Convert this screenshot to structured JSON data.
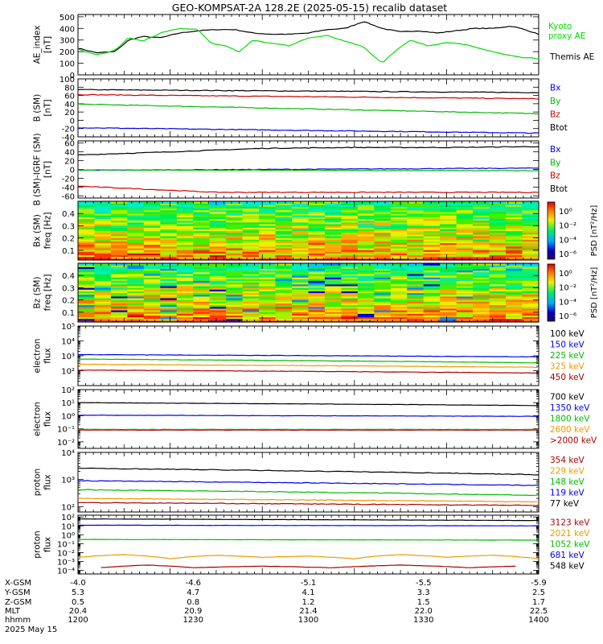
{
  "title": "GEO-KOMPSAT-2A 128.2E (2025-05-15) recalib dataset",
  "chart_data": [
    {
      "type": "line",
      "ylabel": "AE_index\n[nT]",
      "yticks": [
        0,
        100,
        200,
        300,
        400,
        500
      ],
      "ylim": [
        0,
        520
      ],
      "legend": [
        {
          "name": "Kyoto proxy AE",
          "lines": [
            "Kyoto",
            "proxy AE"
          ],
          "color": "#00dd00"
        },
        {
          "name": "Themis AE",
          "lines": [
            "Themis AE"
          ],
          "color": "#000000"
        }
      ],
      "series": [
        {
          "name": "Themis AE",
          "color": "#000000",
          "x": [
            0,
            0.04,
            0.08,
            0.11,
            0.14,
            0.18,
            0.22,
            0.26,
            0.3,
            0.34,
            0.38,
            0.42,
            0.46,
            0.5,
            0.54,
            0.58,
            0.62,
            0.66,
            0.7,
            0.74,
            0.78,
            0.82,
            0.86,
            0.9,
            0.94,
            0.97,
            1.0
          ],
          "y": [
            230,
            190,
            200,
            300,
            330,
            320,
            360,
            380,
            390,
            390,
            360,
            350,
            350,
            360,
            390,
            400,
            460,
            400,
            370,
            380,
            360,
            380,
            400,
            400,
            420,
            390,
            350
          ]
        },
        {
          "name": "Kyoto proxy AE",
          "color": "#00dd00",
          "x": [
            0,
            0.04,
            0.08,
            0.11,
            0.14,
            0.18,
            0.22,
            0.26,
            0.29,
            0.32,
            0.35,
            0.38,
            0.42,
            0.46,
            0.5,
            0.54,
            0.58,
            0.62,
            0.66,
            0.69,
            0.72,
            0.76,
            0.8,
            0.84,
            0.88,
            0.92,
            0.96,
            1.0
          ],
          "y": [
            220,
            170,
            210,
            320,
            290,
            360,
            400,
            390,
            270,
            250,
            200,
            300,
            270,
            250,
            320,
            340,
            290,
            240,
            100,
            210,
            300,
            250,
            280,
            260,
            220,
            180,
            150,
            140
          ]
        }
      ]
    },
    {
      "type": "line",
      "ylabel": "B (SM)\n[nT]",
      "yticks": [
        -40,
        -20,
        0,
        20,
        40,
        60,
        80,
        100
      ],
      "ylim": [
        -40,
        100
      ],
      "legend": [
        {
          "name": "Bx",
          "lines": [
            "Bx"
          ],
          "color": "#0000ee"
        },
        {
          "name": "By",
          "lines": [
            "By"
          ],
          "color": "#00bb00"
        },
        {
          "name": "Bz",
          "lines": [
            "Bz"
          ],
          "color": "#cc0000"
        },
        {
          "name": "Btot",
          "lines": [
            "Btot"
          ],
          "color": "#000000"
        }
      ],
      "series": [
        {
          "name": "Btot",
          "color": "#000000",
          "x": [
            0,
            1
          ],
          "y": [
            74,
            67
          ]
        },
        {
          "name": "Bz",
          "color": "#cc0000",
          "x": [
            0,
            1
          ],
          "y": [
            62,
            52
          ]
        },
        {
          "name": "By",
          "color": "#00bb00",
          "x": [
            0,
            1
          ],
          "y": [
            39,
            16
          ]
        },
        {
          "name": "Bx",
          "color": "#0000ee",
          "x": [
            0,
            1
          ],
          "y": [
            -18,
            -31
          ]
        }
      ]
    },
    {
      "type": "line",
      "ylabel": "B (SM)-IGRF (SM)\n[nT]",
      "yticks": [
        -60,
        -40,
        -20,
        0,
        20,
        40,
        60
      ],
      "ylim": [
        -65,
        65
      ],
      "legend": [
        {
          "name": "Bx",
          "lines": [
            "Bx"
          ],
          "color": "#0000ee"
        },
        {
          "name": "By",
          "lines": [
            "By"
          ],
          "color": "#00bb00"
        },
        {
          "name": "Bz",
          "lines": [
            "Bz"
          ],
          "color": "#cc0000"
        },
        {
          "name": "Btot",
          "lines": [
            "Btot"
          ],
          "color": "#000000"
        }
      ],
      "series": [
        {
          "name": "Btot",
          "color": "#000000",
          "x": [
            0,
            0.2,
            0.4,
            0.6,
            0.8,
            1.0
          ],
          "y": [
            33,
            40,
            48,
            50,
            50,
            52
          ]
        },
        {
          "name": "Bx",
          "color": "#0000ee",
          "x": [
            0,
            1
          ],
          "y": [
            -2,
            3
          ]
        },
        {
          "name": "By",
          "color": "#00bb00",
          "x": [
            0,
            1
          ],
          "y": [
            -1,
            -3
          ]
        },
        {
          "name": "Bz",
          "color": "#cc0000",
          "x": [
            0,
            0.3,
            1
          ],
          "y": [
            -38,
            -52,
            -52
          ]
        }
      ]
    },
    {
      "type": "heatmap",
      "ylabel": "Bx (SM)\nfreq [Hz]",
      "yticks": [
        0.1,
        0.2,
        0.3,
        0.4
      ],
      "ylim": [
        0.02,
        0.5
      ],
      "cbar": {
        "label": "PSD [nT²/Hz]",
        "ticks": [
          "10⁰",
          "10⁻²",
          "10⁻⁴",
          "10⁻⁶"
        ]
      }
    },
    {
      "type": "heatmap",
      "ylabel": "Bz (SM)\nfreq [Hz]",
      "yticks": [
        0.1,
        0.2,
        0.3,
        0.4
      ],
      "ylim": [
        0.02,
        0.5
      ],
      "cbar": {
        "label": "PSD [nT²/Hz]",
        "ticks": [
          "10⁰",
          "10⁻²",
          "10⁻⁴",
          "10⁻⁶"
        ]
      }
    },
    {
      "type": "line",
      "ylabel": "electron\nflux",
      "log": true,
      "ylim_exp": [
        1,
        5
      ],
      "yticks_exp": [
        2,
        3,
        4,
        5
      ],
      "legend": [
        {
          "name": "100 keV",
          "lines": [
            "100 keV"
          ],
          "color": "#000000"
        },
        {
          "name": "150 keV",
          "lines": [
            "150 keV"
          ],
          "color": "#0000ee"
        },
        {
          "name": "225 keV",
          "lines": [
            "225 keV"
          ],
          "color": "#00bb00"
        },
        {
          "name": "325 keV",
          "lines": [
            "325 keV"
          ],
          "color": "#ee9900"
        },
        {
          "name": "450 keV",
          "lines": [
            "450 keV"
          ],
          "color": "#aa0000"
        }
      ],
      "series": [
        {
          "name": "150 keV",
          "color": "#0000ee",
          "x": [
            0,
            1
          ],
          "y": [
            1200,
            850
          ]
        },
        {
          "name": "225 keV",
          "color": "#00bb00",
          "x": [
            0,
            1
          ],
          "y": [
            600,
            340
          ]
        },
        {
          "name": "325 keV",
          "color": "#ee9900",
          "x": [
            0,
            1
          ],
          "y": [
            270,
            170
          ]
        },
        {
          "name": "450 keV",
          "color": "#aa0000",
          "x": [
            0,
            1
          ],
          "y": [
            110,
            70
          ]
        }
      ]
    },
    {
      "type": "line",
      "ylabel": "electron\nflux",
      "log": true,
      "ylim_exp": [
        -2.5,
        2
      ],
      "yticks_exp": [
        -2,
        -1,
        0,
        1,
        2
      ],
      "legend": [
        {
          "name": "700 keV",
          "lines": [
            "700 keV"
          ],
          "color": "#000000"
        },
        {
          "name": "1350 keV",
          "lines": [
            "1350 keV"
          ],
          "color": "#0000ee"
        },
        {
          "name": "1800 keV",
          "lines": [
            "1800 keV"
          ],
          "color": "#00bb00"
        },
        {
          "name": "2600 keV",
          "lines": [
            "2600 keV"
          ],
          "color": "#ee9900"
        },
        {
          "name": ">2000 keV",
          "lines": [
            ">2000 keV"
          ],
          "color": "#aa0000"
        }
      ],
      "series": [
        {
          "name": "700 keV",
          "color": "#000000",
          "x": [
            0,
            1
          ],
          "y": [
            10,
            6
          ]
        },
        {
          "name": "1350 keV",
          "color": "#0000ee",
          "x": [
            0,
            1
          ],
          "y": [
            1.1,
            0.9
          ]
        },
        {
          "name": "1800 keV",
          "color": "#00bb00",
          "x": [
            0,
            1
          ],
          "y": [
            0.09,
            0.09
          ]
        },
        {
          "name": "2600 keV",
          "color": "#ee9900",
          "x": [
            0,
            1
          ],
          "y": [
            0.085,
            0.085
          ]
        },
        {
          "name": ">2000 keV",
          "color": "#aa0000",
          "x": [
            0,
            1
          ],
          "y": [
            0.08,
            0.08
          ]
        }
      ]
    },
    {
      "type": "line",
      "ylabel": "proton\nflux",
      "log": true,
      "ylim_exp": [
        1.8,
        4
      ],
      "yticks_exp": [
        2,
        3,
        4
      ],
      "legend": [
        {
          "name": "354 keV",
          "lines": [
            "354 keV"
          ],
          "color": "#aa0000"
        },
        {
          "name": "229 keV",
          "lines": [
            "229 keV"
          ],
          "color": "#ee9900"
        },
        {
          "name": "148 keV",
          "lines": [
            "148 keV"
          ],
          "color": "#00bb00"
        },
        {
          "name": "119 keV",
          "lines": [
            "119 keV"
          ],
          "color": "#0000ee"
        },
        {
          "name": "77 keV",
          "lines": [
            "77 keV"
          ],
          "color": "#000000"
        }
      ],
      "series": [
        {
          "name": "77 keV",
          "color": "#000000",
          "x": [
            0,
            1
          ],
          "y": [
            2600,
            1500
          ]
        },
        {
          "name": "119 keV",
          "color": "#0000ee",
          "x": [
            0,
            1
          ],
          "y": [
            900,
            600
          ]
        },
        {
          "name": "148 keV",
          "color": "#00bb00",
          "x": [
            0,
            1
          ],
          "y": [
            420,
            260
          ]
        },
        {
          "name": "229 keV",
          "color": "#ee9900",
          "x": [
            0,
            1
          ],
          "y": [
            200,
            150
          ]
        },
        {
          "name": "354 keV",
          "color": "#aa0000",
          "x": [
            0,
            1
          ],
          "y": [
            140,
            110
          ]
        }
      ]
    },
    {
      "type": "line",
      "ylabel": "proton\nflux",
      "log": true,
      "ylim_exp": [
        -4.4,
        2.2
      ],
      "yticks_exp": [
        -4,
        -3,
        -2,
        -1,
        0,
        1,
        2
      ],
      "legend": [
        {
          "name": "3123 keV",
          "lines": [
            "3123 keV"
          ],
          "color": "#aa0000"
        },
        {
          "name": "2021 keV",
          "lines": [
            "2021 keV"
          ],
          "color": "#ee9900"
        },
        {
          "name": "1052 keV",
          "lines": [
            "1052 keV"
          ],
          "color": "#00bb00"
        },
        {
          "name": "681 keV",
          "lines": [
            "681 keV"
          ],
          "color": "#0000ee"
        },
        {
          "name": "548 keV",
          "lines": [
            "548 keV"
          ],
          "color": "#000000"
        }
      ],
      "series": [
        {
          "name": "548 keV",
          "color": "#000000",
          "x": [
            0,
            1
          ],
          "y": [
            60,
            40
          ]
        },
        {
          "name": "681 keV",
          "color": "#0000ee",
          "x": [
            0,
            1
          ],
          "y": [
            12,
            10
          ]
        },
        {
          "name": "1052 keV",
          "color": "#00bb00",
          "x": [
            0,
            1
          ],
          "y": [
            0.3,
            0.25
          ]
        },
        {
          "name": "2021 keV",
          "color": "#ee9900",
          "x": [
            0,
            0.1,
            0.2,
            0.3,
            0.4,
            0.5,
            0.6,
            0.7,
            0.8,
            0.9,
            1.0
          ],
          "y": [
            0.003,
            0.006,
            0.002,
            0.005,
            0.003,
            0.004,
            0.002,
            0.006,
            0.003,
            0.005,
            0.002
          ]
        },
        {
          "name": "3123 keV",
          "color": "#aa0000",
          "x": [
            0.05,
            0.15,
            0.25,
            0.4,
            0.55,
            0.7,
            0.85,
            0.95
          ],
          "y": [
            0.0002,
            0.0004,
            0.0002,
            0.0003,
            0.0002,
            0.0004,
            0.0002,
            0.0003
          ]
        }
      ]
    }
  ],
  "xaxis": {
    "row_labels": [
      "X-GSM",
      "Y-GSM",
      "Z-GSM",
      "MLT",
      "hhmm",
      "2025 May 15"
    ],
    "columns": [
      {
        "values": [
          "-4.0",
          "5.3",
          "0.5",
          "20.4",
          "1200"
        ]
      },
      {
        "values": [
          "-4.6",
          "4.7",
          "0.8",
          "20.9",
          "1230"
        ]
      },
      {
        "values": [
          "-5.1",
          "4.1",
          "1.2",
          "21.4",
          "1300"
        ]
      },
      {
        "values": [
          "-5.5",
          "3.3",
          "1.5",
          "22.0",
          "1330"
        ]
      },
      {
        "values": [
          "-5.9",
          "2.5",
          "1.7",
          "22.5",
          "1400"
        ]
      }
    ]
  }
}
